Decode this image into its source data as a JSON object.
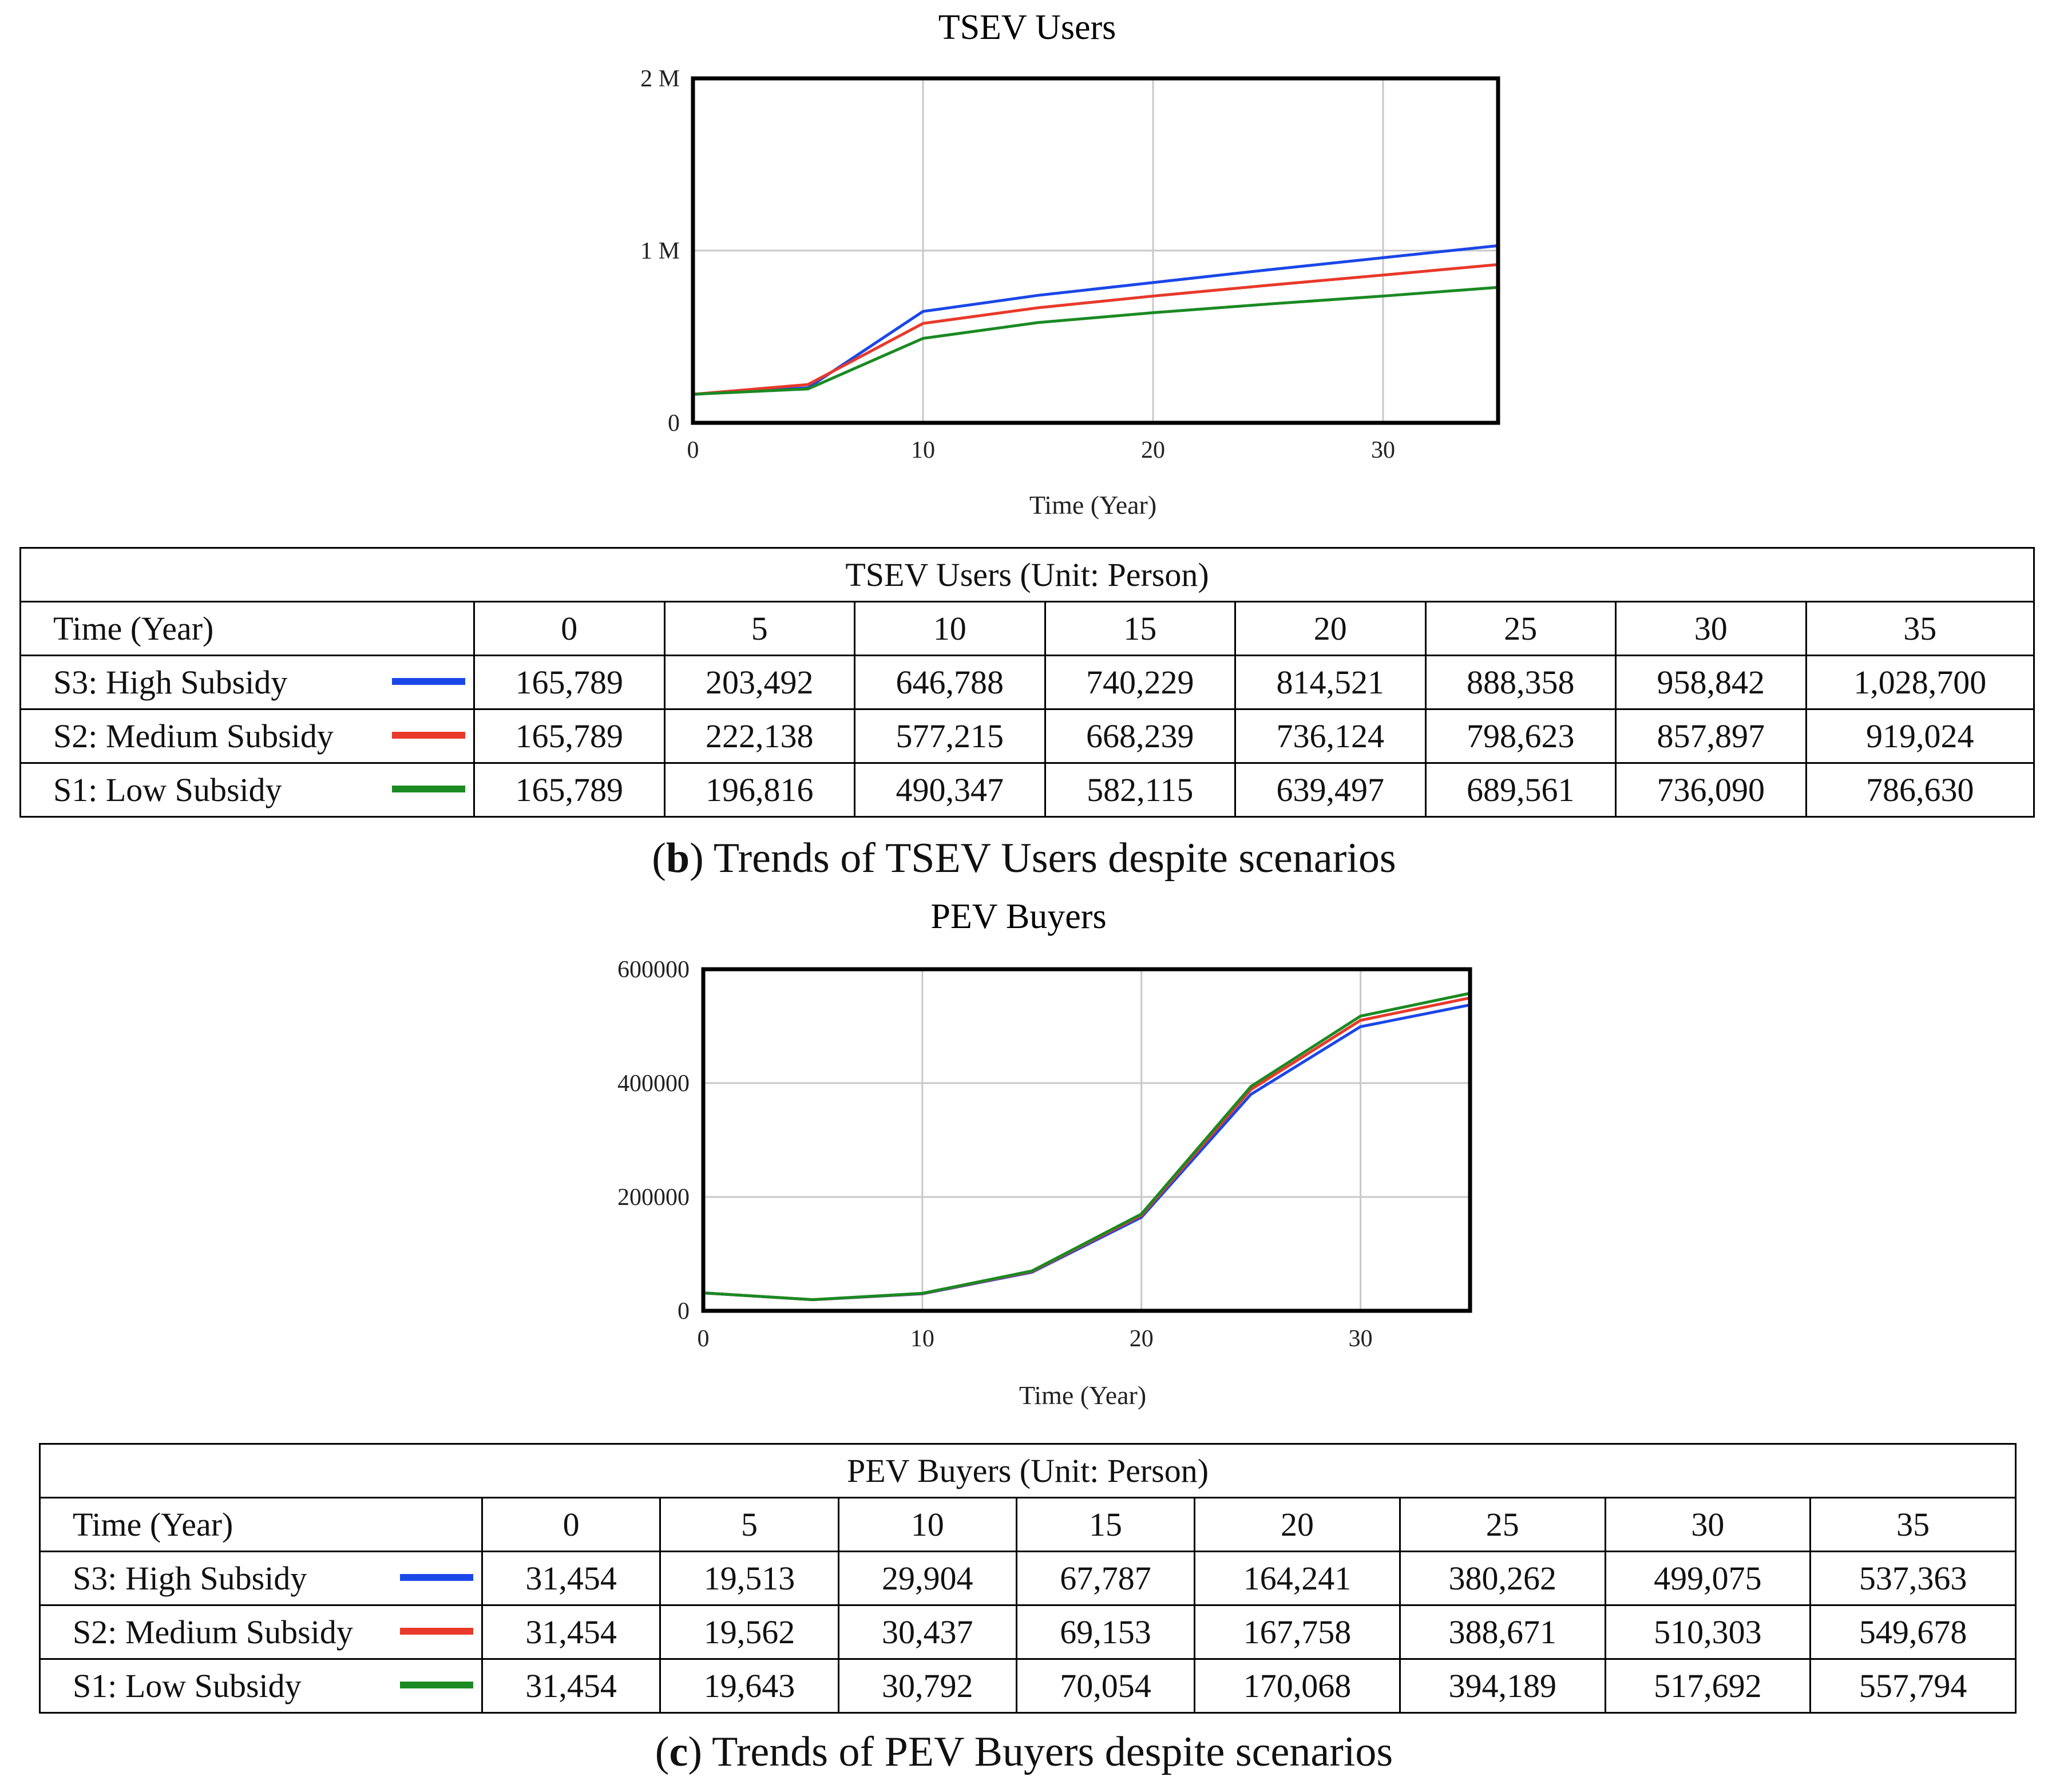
{
  "series_meta": [
    {
      "name": "S3: High Subsidy",
      "color": "#1a47e8"
    },
    {
      "name": "S2: Medium Subsidy",
      "color": "#e8392a"
    },
    {
      "name": "S1: Low Subsidy",
      "color": "#1a8a22"
    }
  ],
  "chart_data": [
    {
      "type": "line",
      "title": "TSEV Users",
      "xlabel": "Time (Year)",
      "ylabel": "",
      "x": [
        0,
        5,
        10,
        15,
        20,
        25,
        30,
        35
      ],
      "xlim": [
        0,
        35
      ],
      "ylim": [
        0,
        2000000
      ],
      "xticks": [
        0,
        10,
        20,
        30
      ],
      "yticks": [
        {
          "value": 0,
          "label": "0"
        },
        {
          "value": 1000000,
          "label": "1 M"
        },
        {
          "value": 2000000,
          "label": "2 M"
        }
      ],
      "grid": true,
      "series": [
        {
          "name": "S3: High Subsidy",
          "values": [
            165789,
            203492,
            646788,
            740229,
            814521,
            888358,
            958842,
            1028700
          ]
        },
        {
          "name": "S2: Medium Subsidy",
          "values": [
            165789,
            222138,
            577215,
            668239,
            736124,
            798623,
            857897,
            919024
          ]
        },
        {
          "name": "S1: Low Subsidy",
          "values": [
            165789,
            196816,
            490347,
            582115,
            639497,
            689561,
            736090,
            786630
          ]
        }
      ]
    },
    {
      "type": "line",
      "title": "PEV Buyers",
      "xlabel": "Time (Year)",
      "ylabel": "",
      "x": [
        0,
        5,
        10,
        15,
        20,
        25,
        30,
        35
      ],
      "xlim": [
        0,
        35
      ],
      "ylim": [
        0,
        600000
      ],
      "xticks": [
        0,
        10,
        20,
        30
      ],
      "yticks": [
        {
          "value": 0,
          "label": "0"
        },
        {
          "value": 200000,
          "label": "200000"
        },
        {
          "value": 400000,
          "label": "400000"
        },
        {
          "value": 600000,
          "label": "600000"
        }
      ],
      "grid": true,
      "series": [
        {
          "name": "S3: High Subsidy",
          "values": [
            31454,
            19513,
            29904,
            67787,
            164241,
            380262,
            499075,
            537363
          ]
        },
        {
          "name": "S2: Medium Subsidy",
          "values": [
            31454,
            19562,
            30437,
            69153,
            167758,
            388671,
            510303,
            549678
          ]
        },
        {
          "name": "S1: Low Subsidy",
          "values": [
            31454,
            19643,
            30792,
            70054,
            170068,
            394189,
            517692,
            557794
          ]
        }
      ]
    }
  ],
  "tables": [
    {
      "title": "TSEV Users (Unit: Person)",
      "header_label": "Time (Year)",
      "columns": [
        "0",
        "5",
        "10",
        "15",
        "20",
        "25",
        "30",
        "35"
      ],
      "rows": [
        {
          "label": "S3: High Subsidy",
          "cells": [
            "165,789",
            "203,492",
            "646,788",
            "740,229",
            "814,521",
            "888,358",
            "958,842",
            "1,028,700"
          ]
        },
        {
          "label": "S2: Medium Subsidy",
          "cells": [
            "165,789",
            "222,138",
            "577,215",
            "668,239",
            "736,124",
            "798,623",
            "857,897",
            "919,024"
          ]
        },
        {
          "label": "S1: Low Subsidy",
          "cells": [
            "165,789",
            "196,816",
            "490,347",
            "582,115",
            "639,497",
            "689,561",
            "736,090",
            "786,630"
          ]
        }
      ]
    },
    {
      "title": "PEV Buyers (Unit: Person)",
      "header_label": "Time (Year)",
      "columns": [
        "0",
        "5",
        "10",
        "15",
        "20",
        "25",
        "30",
        "35"
      ],
      "rows": [
        {
          "label": "S3: High Subsidy",
          "cells": [
            "31,454",
            "19,513",
            "29,904",
            "67,787",
            "164,241",
            "380,262",
            "499,075",
            "537,363"
          ]
        },
        {
          "label": "S2: Medium Subsidy",
          "cells": [
            "31,454",
            "19,562",
            "30,437",
            "69,153",
            "167,758",
            "388,671",
            "510,303",
            "549,678"
          ]
        },
        {
          "label": "S1: Low Subsidy",
          "cells": [
            "31,454",
            "19,643",
            "30,792",
            "70,054",
            "170,068",
            "394,189",
            "517,692",
            "557,794"
          ]
        }
      ]
    }
  ],
  "captions": [
    {
      "letter": "b",
      "text": ") Trends of TSEV Users despite scenarios"
    },
    {
      "letter": "c",
      "text": ") Trends of PEV Buyers despite scenarios"
    }
  ]
}
